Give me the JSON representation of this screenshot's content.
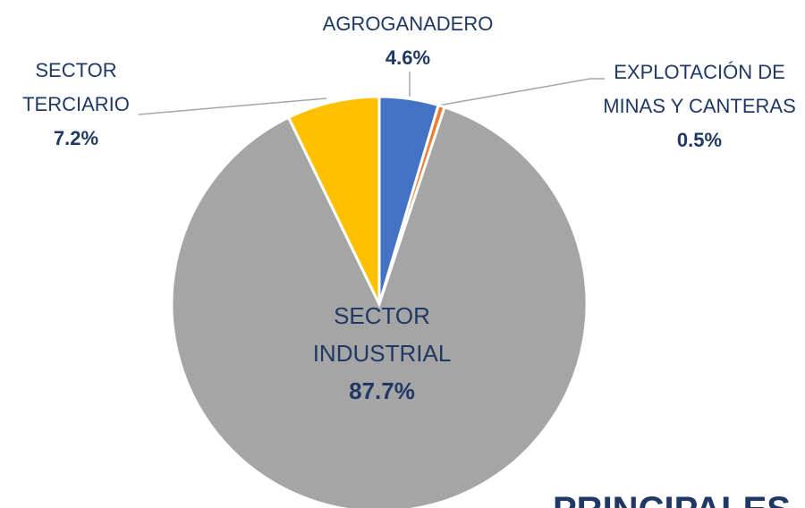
{
  "chart_data": {
    "type": "pie",
    "categories": [
      "AGROGANADERO",
      "EXPLOTACIÓN DE MINAS Y CANTERAS",
      "SECTOR INDUSTRIAL",
      "SECTOR TERCIARIO"
    ],
    "values": [
      4.6,
      0.5,
      87.7,
      7.2
    ],
    "value_labels": [
      "4.6%",
      "0.5%",
      "87.7%",
      "7.2%"
    ],
    "colors": [
      "#4472c4",
      "#ed7d31",
      "#a5a5a5",
      "#ffc000"
    ]
  },
  "footer_text": "PRINCIPALES"
}
